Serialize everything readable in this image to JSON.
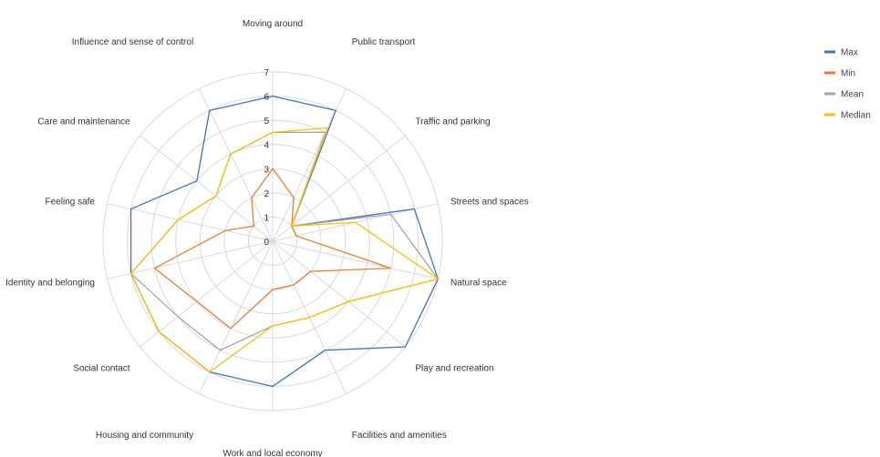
{
  "chart_data": {
    "type": "radar",
    "categories": [
      "Moving around",
      "Public transport",
      "Traffic and parking",
      "Streets and spaces",
      "Natural space",
      "Play and recreation",
      "Facilities and amenities",
      "Work and local economy",
      "Housing and community",
      "Social contact",
      "Identity and belonging",
      "Feeling safe",
      "Care and maintenance",
      "Influence and sense of control"
    ],
    "series": [
      {
        "name": "Max",
        "color": "#4472c4",
        "values": [
          6,
          6,
          1,
          6,
          7,
          7,
          5,
          6,
          6,
          6,
          6,
          6,
          4,
          6
        ]
      },
      {
        "name": "Min",
        "color": "#ed7d31",
        "values": [
          3,
          2,
          1,
          1,
          5,
          2,
          2,
          2,
          4,
          4,
          5,
          2,
          1,
          2
        ]
      },
      {
        "name": "Mean",
        "color": "#a5a5a5",
        "values": [
          4.5,
          5,
          1,
          5,
          7,
          4,
          3.5,
          3.5,
          5,
          5,
          6,
          4,
          3,
          4
        ]
      },
      {
        "name": "Median",
        "color": "#ffc000",
        "values": [
          4.5,
          5.2,
          1,
          3.5,
          7,
          4,
          3.5,
          3.5,
          6,
          6,
          6,
          4,
          3,
          4
        ]
      }
    ],
    "ticks": [
      0,
      1,
      2,
      3,
      4,
      5,
      6,
      7
    ],
    "range": [
      0,
      7
    ],
    "grid": true,
    "legend_position": "right"
  }
}
